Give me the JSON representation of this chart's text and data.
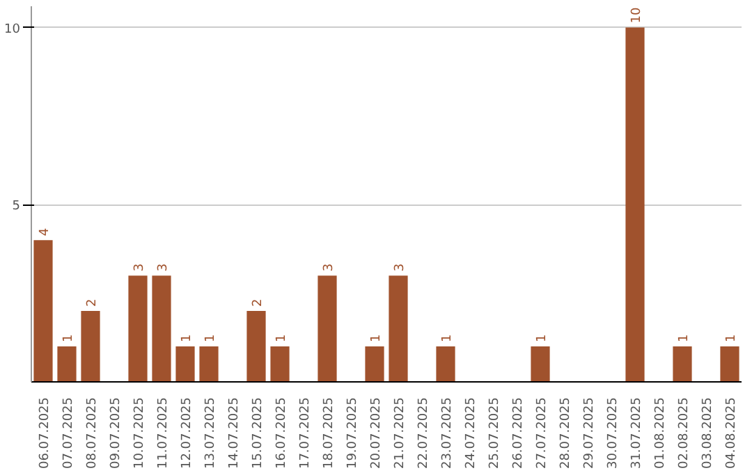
{
  "chart_data": {
    "type": "bar",
    "categories": [
      "06.07.2025",
      "07.07.2025",
      "08.07.2025",
      "09.07.2025",
      "10.07.2025",
      "11.07.2025",
      "12.07.2025",
      "13.07.2025",
      "14.07.2025",
      "15.07.2025",
      "16.07.2025",
      "17.07.2025",
      "18.07.2025",
      "19.07.2025",
      "20.07.2025",
      "21.07.2025",
      "22.07.2025",
      "23.07.2025",
      "24.07.2025",
      "25.07.2025",
      "26.07.2025",
      "27.07.2025",
      "28.07.2025",
      "29.07.2025",
      "30.07.2025",
      "31.07.2025",
      "01.08.2025",
      "02.08.2025",
      "03.08.2025",
      "04.08.2025"
    ],
    "values": [
      4,
      1,
      2,
      null,
      3,
      3,
      1,
      1,
      null,
      2,
      1,
      null,
      3,
      null,
      1,
      3,
      null,
      1,
      null,
      null,
      null,
      1,
      null,
      null,
      null,
      10,
      null,
      1,
      null,
      1
    ],
    "color": "#a0522d",
    "ylim": [
      0,
      10.6
    ],
    "yticks": [
      5,
      10
    ],
    "grid": "y",
    "data_labels": true
  }
}
